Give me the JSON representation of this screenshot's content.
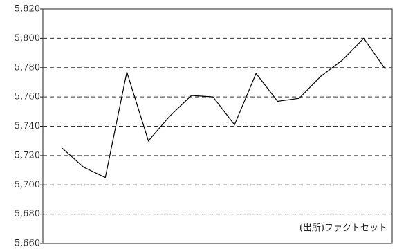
{
  "chart_data": {
    "type": "line",
    "annotation": "(出所)ファクトセット",
    "categories": [
      null,
      null,
      null,
      null,
      null,
      null,
      null,
      null,
      null,
      null,
      null,
      null,
      null,
      null,
      null,
      null
    ],
    "series": [
      {
        "color": "#000000",
        "values": [
          5725,
          5712,
          5705,
          5777,
          5730,
          5747,
          5761,
          5760,
          5741,
          5776,
          5757,
          5759,
          5774,
          5785,
          5800,
          5779
        ]
      }
    ],
    "ylim": [
      5660,
      5820
    ],
    "yticks": [
      {
        "value": 5660,
        "label": "5,660"
      },
      {
        "value": 5680,
        "label": "5,680"
      },
      {
        "value": 5700,
        "label": "5,700"
      },
      {
        "value": 5720,
        "label": "5,720"
      },
      {
        "value": 5740,
        "label": "5,740"
      },
      {
        "value": 5760,
        "label": "5,760"
      },
      {
        "value": 5780,
        "label": "5,780"
      },
      {
        "value": 5800,
        "label": "5,800"
      },
      {
        "value": 5820,
        "label": "5,820"
      }
    ],
    "grid": true
  }
}
